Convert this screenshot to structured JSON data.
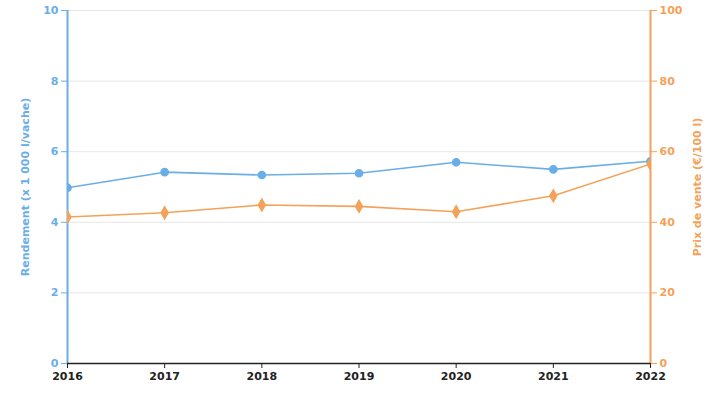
{
  "chart_data": {
    "type": "line",
    "x": [
      2016,
      2017,
      2018,
      2019,
      2020,
      2021,
      2022
    ],
    "xlim": [
      2016,
      2022
    ],
    "xticks": [
      2016,
      2017,
      2018,
      2019,
      2020,
      2021,
      2022
    ],
    "ylim": [
      0,
      10
    ],
    "yticks": [
      0,
      2,
      4,
      6,
      8,
      10
    ],
    "y2lim": [
      0,
      100
    ],
    "y2ticks": [
      0,
      20,
      40,
      60,
      80,
      100
    ],
    "grid": true,
    "series": [
      {
        "name": "Rendement (x 1 000 l/vache)",
        "color": "#6aaee8",
        "marker": "circle",
        "values": [
          4.98,
          5.42,
          5.34,
          5.39,
          5.7,
          5.5,
          5.73
        ]
      },
      {
        "name": "Prix de vente (€/100 l)",
        "color": "#f4a259",
        "marker": "diamond",
        "axis": "y2",
        "values": [
          41.5,
          42.7,
          44.9,
          44.5,
          43.0,
          47.5,
          56.5
        ]
      }
    ]
  }
}
